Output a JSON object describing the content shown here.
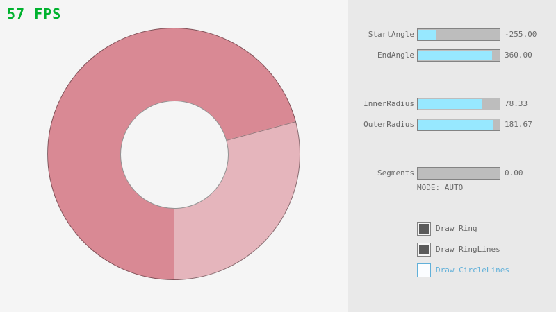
{
  "app": {
    "fps_label": "57 FPS",
    "fps_color": "#00b22e"
  },
  "ring": {
    "start_angle": -255.0,
    "end_angle": 360.0,
    "inner_radius": 78.33,
    "outer_radius": 181.67,
    "segments": 0,
    "color_overlap": "#D98994",
    "color_single": "#E5B5BC",
    "outline_color": "rgba(0,0,0,0.4)",
    "background_color": "#f5f5f5"
  },
  "panel": {
    "background_color": "#e9e9e9",
    "accent_fill_color": "#97e8ff",
    "sliders": [
      {
        "label": "StartAngle",
        "value": "-255.00",
        "fill_pct": 21.7
      },
      {
        "label": "EndAngle",
        "value": "360.00",
        "fill_pct": 90.0
      },
      {
        "label": "InnerRadius",
        "value": "78.33",
        "fill_pct": 78.3
      },
      {
        "label": "OuterRadius",
        "value": "181.67",
        "fill_pct": 90.8
      },
      {
        "label": "Segments",
        "value": "0.00",
        "fill_pct": 0
      }
    ],
    "mode_text": "MODE: AUTO",
    "checkboxes": [
      {
        "label": "Draw Ring",
        "checked": true,
        "focused": false
      },
      {
        "label": "Draw RingLines",
        "checked": true,
        "focused": false
      },
      {
        "label": "Draw CircleLines",
        "checked": false,
        "focused": true
      }
    ]
  }
}
